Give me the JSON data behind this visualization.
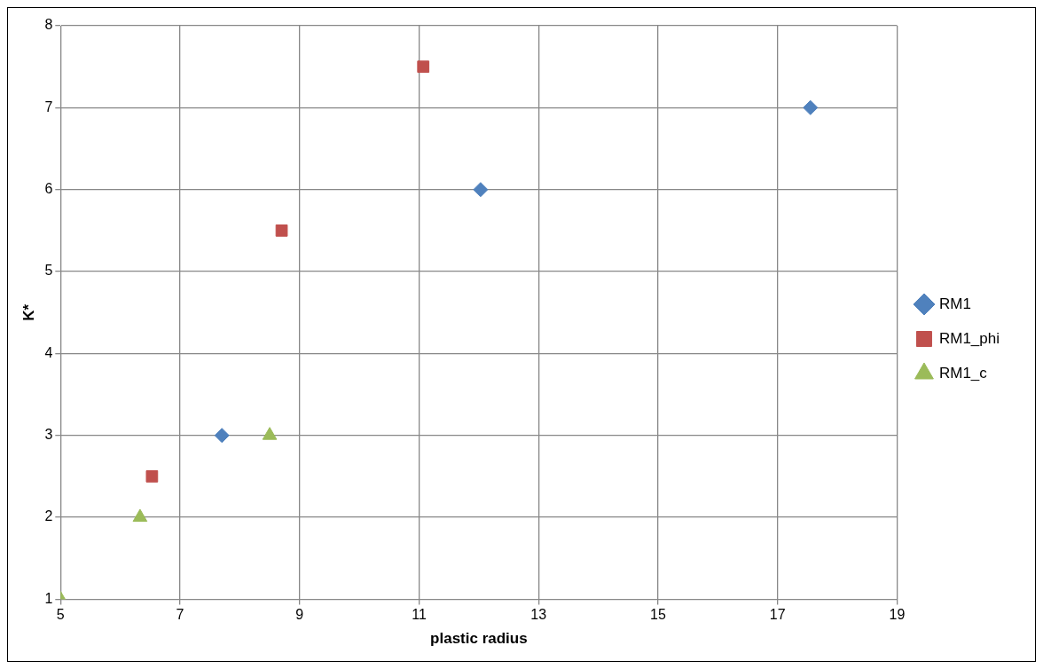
{
  "chart_data": {
    "type": "scatter",
    "xlabel": "plastic radius",
    "ylabel": "K*",
    "xlim": [
      5,
      19
    ],
    "xticks": [
      5,
      7,
      9,
      11,
      13,
      15,
      17,
      19
    ],
    "ylim": [
      1,
      8
    ],
    "yticks": [
      1,
      2,
      3,
      4,
      5,
      6,
      7,
      8
    ],
    "grid": true,
    "legend": "right",
    "series": [
      {
        "name": "RM1",
        "color": "#4f81bd",
        "marker": "diamond",
        "x": [
          7.7,
          12.03,
          17.55
        ],
        "values": [
          3,
          6,
          7
        ]
      },
      {
        "name": "RM1_phi",
        "color": "#c0504d",
        "marker": "square",
        "x": [
          6.53,
          8.7,
          11.07
        ],
        "values": [
          2.5,
          5.5,
          7.5
        ]
      },
      {
        "name": "RM1_c",
        "color": "#9bbb59",
        "marker": "triangle",
        "x": [
          5,
          6.33,
          8.5
        ],
        "values": [
          1,
          2,
          3
        ]
      }
    ]
  }
}
